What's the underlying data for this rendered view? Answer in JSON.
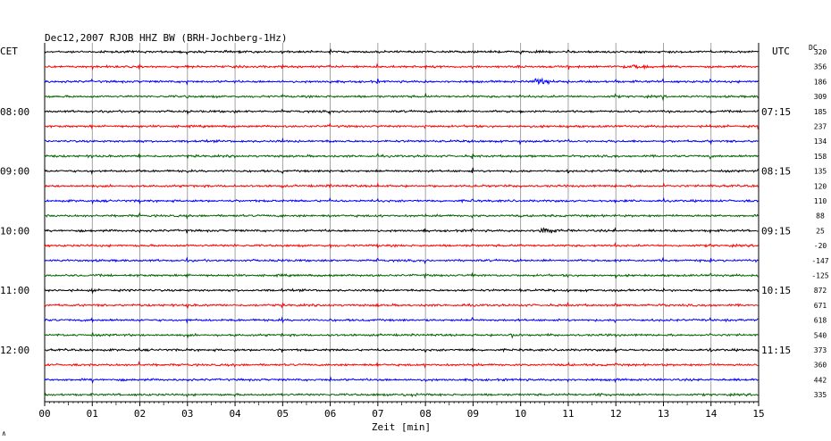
{
  "header": {
    "title": "Dec12,2007   RJOB HHZ BW (BRH-Jochberg-1Hz)",
    "left_tz": "CET",
    "right_tz": "UTC",
    "dc_label": "DC",
    "corner_mark": "∧"
  },
  "chart_data": {
    "type": "line",
    "title": "Dec12,2007   RJOB HHZ BW (BRH-Jochberg-1Hz)",
    "xlabel": "Zeit [min]",
    "ylabel": "",
    "xlim": [
      0,
      15
    ],
    "x_ticks": [
      "00",
      "01",
      "02",
      "03",
      "04",
      "05",
      "06",
      "07",
      "08",
      "09",
      "10",
      "11",
      "12",
      "13",
      "14",
      "15"
    ],
    "grid": true,
    "left_time_labels": [
      {
        "trace": 4,
        "text": "08:00"
      },
      {
        "trace": 8,
        "text": "09:00"
      },
      {
        "trace": 12,
        "text": "10:00"
      },
      {
        "trace": 16,
        "text": "11:00"
      },
      {
        "trace": 20,
        "text": "12:00"
      }
    ],
    "right_time_labels": [
      {
        "trace": 4,
        "text": "07:15"
      },
      {
        "trace": 8,
        "text": "08:15"
      },
      {
        "trace": 12,
        "text": "09:15"
      },
      {
        "trace": 16,
        "text": "10:15"
      },
      {
        "trace": 20,
        "text": "11:15"
      }
    ],
    "dc_values": [
      "320",
      "356",
      "186",
      "309",
      "185",
      "237",
      "134",
      "158",
      "135",
      "120",
      "110",
      "88",
      "25",
      "-20",
      "-147",
      "-125",
      "872",
      "671",
      "618",
      "540",
      "373",
      "360",
      "442",
      "335"
    ],
    "trace_colors": [
      "#000000",
      "#ff0000",
      "#0000ff",
      "#006400"
    ],
    "events": [
      {
        "trace": 1,
        "minute": 12.2,
        "amplitude": 5
      },
      {
        "trace": 2,
        "minute": 10.3,
        "amplitude": 6
      },
      {
        "trace": 12,
        "minute": 10.4,
        "amplitude": 6
      },
      {
        "trace": 19,
        "minute": 9.7,
        "amplitude": 4
      },
      {
        "trace": 23,
        "minute": 7.5,
        "amplitude": 3
      },
      {
        "trace": 23,
        "minute": 11.6,
        "amplitude": 3
      }
    ]
  }
}
